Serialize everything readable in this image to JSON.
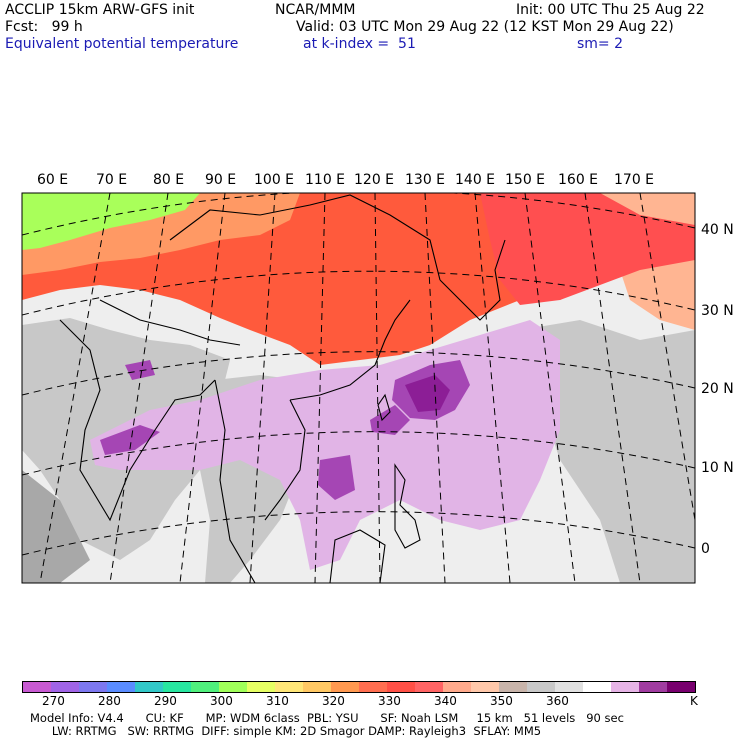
{
  "header": {
    "left_line1": "ACCLIP 15km ARW-GFS init",
    "left_line2": "Fcst:   99 h",
    "left_line3": "Equivalent potential temperature",
    "center_line1": "NCAR/MMM",
    "center_line2": "Valid: 03 UTC Mon 29 Aug 22 (12 KST Mon 29 Aug 22)",
    "center_line3": "at k-index =  51",
    "right_line1": "Init: 00 UTC Thu 25 Aug 22",
    "right_line3": "sm= 2"
  },
  "map": {
    "lon_labels": [
      "60 E",
      "70 E",
      "80 E",
      "90 E",
      "100 E",
      "110 E",
      "120 E",
      "130 E",
      "140 E",
      "150 E",
      "160 E",
      "170 E"
    ],
    "lat_labels": [
      "40 N",
      "30 N",
      "20 N",
      "10 N",
      "0"
    ],
    "colors": {
      "ocean_base": "#eeeeee",
      "land_gray": "#c8c8c8",
      "mid_gray": "#a8a8a8",
      "orange_red": "#ff5a3c",
      "red": "#ff4f50",
      "orange": "#ff9964",
      "salmon": "#ffb592",
      "yellow_green": "#a9ff5a",
      "light_purple": "#e1b4e6",
      "purple": "#a546b4",
      "dark_purple": "#8c1e96"
    }
  },
  "colorbar": {
    "colors": [
      "#c85ad2",
      "#a064e6",
      "#7d78f0",
      "#5a8cff",
      "#32c8c8",
      "#28e6a0",
      "#50f07d",
      "#a0ff5a",
      "#e6ff64",
      "#ffe678",
      "#ffc864",
      "#ff9950",
      "#ff6e50",
      "#ff5046",
      "#ff6464",
      "#ffaa8c",
      "#ffc8aa",
      "#c8b4aa",
      "#c8c8c8",
      "#e1e1e1",
      "#ffffff",
      "#e6b4e6",
      "#a03ca0",
      "#78006e"
    ],
    "labels": [
      "270",
      "280",
      "290",
      "300",
      "310",
      "320",
      "330",
      "340",
      "350",
      "360"
    ],
    "unit": "K"
  },
  "footer": {
    "line1": "Model Info: V4.4      CU: KF      MP: WDM 6class  PBL: YSU      SF: Noah LSM     15 km   51 levels   90 sec",
    "line2": "      LW: RRTMG   SW: RRTMG  DIFF: simple KM: 2D Smagor DAMP: Rayleigh3  SFLAY: MM5"
  }
}
